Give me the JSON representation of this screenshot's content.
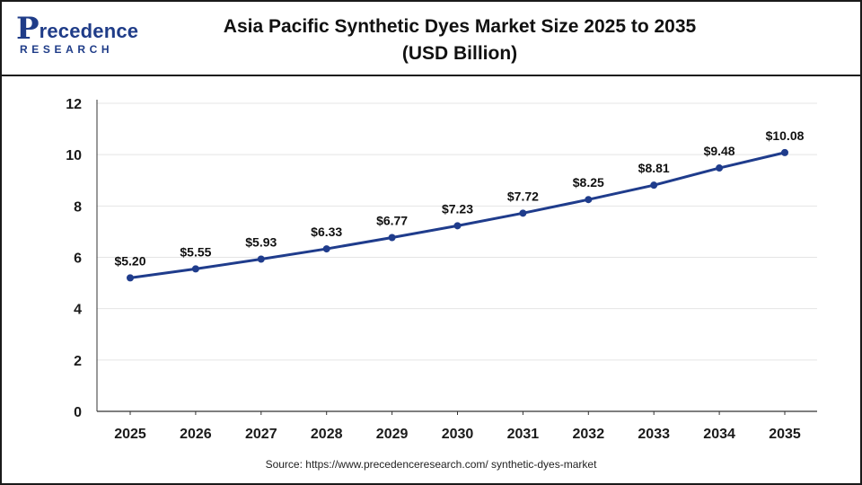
{
  "brand": {
    "logo_main_initial": "P",
    "logo_main_rest": "recedence",
    "logo_sub": "RESEARCH"
  },
  "header": {
    "title_line1": "Asia Pacific Synthetic Dyes Market Size 2025 to 2035",
    "title_line2": "(USD Billion)"
  },
  "footer": {
    "source": "Source: https://www.precedenceresearch.com/ synthetic-dyes-market"
  },
  "colors": {
    "line": "#1f3c8c",
    "grid": "#e4e4e4",
    "axis": "#333333",
    "brand": "#1f3c88"
  },
  "chart_data": {
    "type": "line",
    "title": "Asia Pacific Synthetic Dyes Market Size 2025 to 2035 (USD Billion)",
    "xlabel": "",
    "ylabel": "",
    "categories": [
      "2025",
      "2026",
      "2027",
      "2028",
      "2029",
      "2030",
      "2031",
      "2032",
      "2033",
      "2034",
      "2035"
    ],
    "series": [
      {
        "values": [
          5.2,
          5.55,
          5.93,
          6.33,
          6.77,
          7.23,
          7.72,
          8.25,
          8.81,
          9.48,
          10.08
        ],
        "labels": [
          "$5.20",
          "$5.55",
          "$5.93",
          "$6.33",
          "$6.77",
          "$7.23",
          "$7.72",
          "$8.25",
          "$8.81",
          "$9.48",
          "$10.08"
        ]
      }
    ],
    "ylim": [
      0,
      12
    ],
    "yticks": [
      0,
      2,
      4,
      6,
      8,
      10,
      12
    ],
    "ytick_labels": [
      "0",
      "2",
      "4",
      "6",
      "8",
      "10",
      "12"
    ],
    "grid": true,
    "legend": "none"
  }
}
